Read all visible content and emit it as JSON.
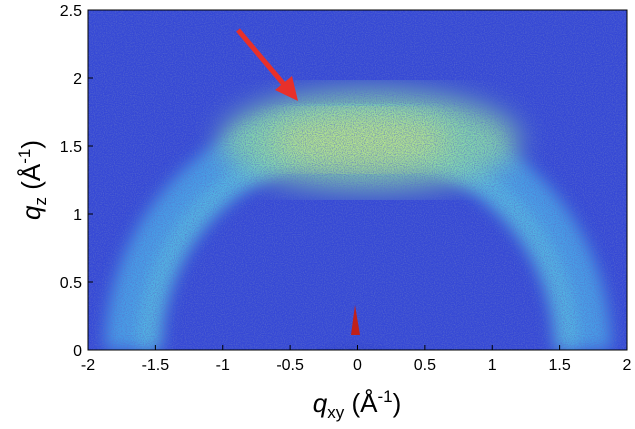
{
  "chart_data": {
    "type": "image",
    "xlabel": [
      "q",
      "xy",
      " (Å",
      "-1",
      ")"
    ],
    "ylabel": [
      "q",
      "z",
      " (Å",
      "-1",
      ")"
    ],
    "xlim": [
      -2,
      2
    ],
    "ylim": [
      0,
      2.5
    ],
    "xticks": [
      -2,
      -1.5,
      -1,
      -0.5,
      0,
      0.5,
      1,
      1.5,
      2
    ],
    "yticks": [
      0,
      0.5,
      1,
      1.5,
      2,
      2.5
    ]
  }
}
